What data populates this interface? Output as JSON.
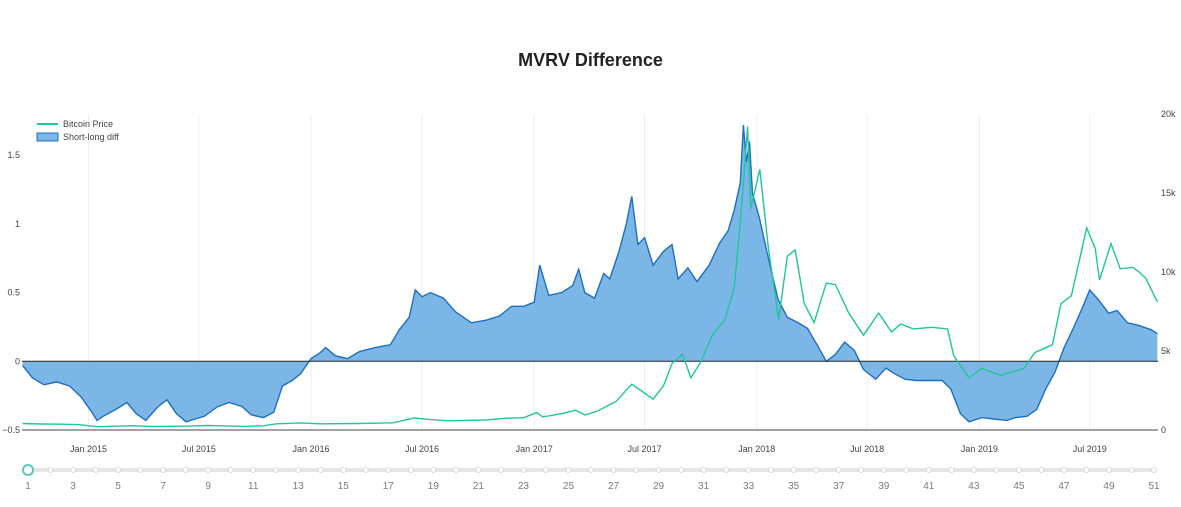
{
  "chart_data": {
    "type": "area",
    "title": "MVRV Difference",
    "grid": true,
    "legend_placement": "top-left",
    "x_ticks": [
      "Jan 2015",
      "Jul 2015",
      "Jan 2016",
      "Jul 2016",
      "Jan 2017",
      "Jul 2017",
      "Jan 2018",
      "Jul 2018",
      "Jan 2019",
      "Jul 2019"
    ],
    "y_left": {
      "range": [
        -0.5,
        1.8
      ],
      "ticks": [
        "1.5",
        "1",
        "0.5",
        "0",
        "−0.5"
      ],
      "tick_values": [
        1.5,
        1,
        0.5,
        0,
        -0.5
      ]
    },
    "y_right": {
      "range": [
        0,
        20000
      ],
      "ticks": [
        "20k",
        "15k",
        "10k",
        "5k",
        "0"
      ],
      "tick_values": [
        20000,
        15000,
        10000,
        5000,
        0
      ]
    },
    "series": [
      {
        "name": "Short-long diff",
        "axis": "left",
        "color": "#1f6fc0",
        "fill": "#7bb6e6",
        "points": [
          [
            "2014-09-15",
            -0.03
          ],
          [
            "2014-10-01",
            -0.12
          ],
          [
            "2014-10-20",
            -0.17
          ],
          [
            "2014-11-10",
            -0.15
          ],
          [
            "2014-12-01",
            -0.18
          ],
          [
            "2014-12-20",
            -0.26
          ],
          [
            "2015-01-05",
            -0.36
          ],
          [
            "2015-01-15",
            -0.43
          ],
          [
            "2015-01-25",
            -0.4
          ],
          [
            "2015-02-15",
            -0.35
          ],
          [
            "2015-03-05",
            -0.3
          ],
          [
            "2015-03-20",
            -0.38
          ],
          [
            "2015-04-05",
            -0.43
          ],
          [
            "2015-04-25",
            -0.33
          ],
          [
            "2015-05-10",
            -0.28
          ],
          [
            "2015-05-25",
            -0.38
          ],
          [
            "2015-06-10",
            -0.44
          ],
          [
            "2015-06-25",
            -0.42
          ],
          [
            "2015-07-10",
            -0.4
          ],
          [
            "2015-08-01",
            -0.33
          ],
          [
            "2015-08-20",
            -0.3
          ],
          [
            "2015-09-10",
            -0.33
          ],
          [
            "2015-09-25",
            -0.39
          ],
          [
            "2015-10-15",
            -0.41
          ],
          [
            "2015-11-01",
            -0.37
          ],
          [
            "2015-11-15",
            -0.18
          ],
          [
            "2015-12-01",
            -0.14
          ],
          [
            "2015-12-15",
            -0.09
          ],
          [
            "2016-01-01",
            0.02
          ],
          [
            "2016-01-15",
            0.06
          ],
          [
            "2016-01-25",
            0.1
          ],
          [
            "2016-02-10",
            0.04
          ],
          [
            "2016-03-01",
            0.02
          ],
          [
            "2016-03-20",
            0.07
          ],
          [
            "2016-04-15",
            0.1
          ],
          [
            "2016-05-10",
            0.12
          ],
          [
            "2016-05-25",
            0.23
          ],
          [
            "2016-06-10",
            0.32
          ],
          [
            "2016-06-20",
            0.52
          ],
          [
            "2016-07-01",
            0.47
          ],
          [
            "2016-07-15",
            0.5
          ],
          [
            "2016-08-05",
            0.46
          ],
          [
            "2016-08-25",
            0.36
          ],
          [
            "2016-09-20",
            0.28
          ],
          [
            "2016-10-15",
            0.3
          ],
          [
            "2016-11-05",
            0.33
          ],
          [
            "2016-11-25",
            0.4
          ],
          [
            "2016-12-15",
            0.4
          ],
          [
            "2017-01-01",
            0.43
          ],
          [
            "2017-01-10",
            0.7
          ],
          [
            "2017-01-25",
            0.48
          ],
          [
            "2017-02-15",
            0.5
          ],
          [
            "2017-03-05",
            0.55
          ],
          [
            "2017-03-15",
            0.67
          ],
          [
            "2017-03-25",
            0.5
          ],
          [
            "2017-04-10",
            0.46
          ],
          [
            "2017-04-25",
            0.64
          ],
          [
            "2017-05-05",
            0.6
          ],
          [
            "2017-05-20",
            0.8
          ],
          [
            "2017-06-01",
            1.0
          ],
          [
            "2017-06-10",
            1.2
          ],
          [
            "2017-06-20",
            0.85
          ],
          [
            "2017-07-01",
            0.9
          ],
          [
            "2017-07-15",
            0.7
          ],
          [
            "2017-08-01",
            0.8
          ],
          [
            "2017-08-15",
            0.85
          ],
          [
            "2017-08-25",
            0.6
          ],
          [
            "2017-09-10",
            0.68
          ],
          [
            "2017-09-25",
            0.58
          ],
          [
            "2017-10-15",
            0.7
          ],
          [
            "2017-11-01",
            0.86
          ],
          [
            "2017-11-15",
            0.95
          ],
          [
            "2017-11-25",
            1.1
          ],
          [
            "2017-12-05",
            1.3
          ],
          [
            "2017-12-10",
            1.72
          ],
          [
            "2017-12-15",
            1.45
          ],
          [
            "2017-12-20",
            1.6
          ],
          [
            "2017-12-25",
            1.22
          ],
          [
            "2018-01-05",
            1.05
          ],
          [
            "2018-01-20",
            0.75
          ],
          [
            "2018-02-05",
            0.45
          ],
          [
            "2018-02-20",
            0.32
          ],
          [
            "2018-03-10",
            0.28
          ],
          [
            "2018-03-25",
            0.24
          ],
          [
            "2018-04-10",
            0.12
          ],
          [
            "2018-04-25",
            0.0
          ],
          [
            "2018-05-10",
            0.05
          ],
          [
            "2018-05-25",
            0.14
          ],
          [
            "2018-06-10",
            0.08
          ],
          [
            "2018-06-25",
            -0.06
          ],
          [
            "2018-07-15",
            -0.13
          ],
          [
            "2018-08-01",
            -0.05
          ],
          [
            "2018-08-15",
            -0.09
          ],
          [
            "2018-09-01",
            -0.13
          ],
          [
            "2018-09-20",
            -0.14
          ],
          [
            "2018-10-10",
            -0.14
          ],
          [
            "2018-11-01",
            -0.14
          ],
          [
            "2018-11-15",
            -0.2
          ],
          [
            "2018-12-01",
            -0.38
          ],
          [
            "2018-12-15",
            -0.44
          ],
          [
            "2019-01-05",
            -0.41
          ],
          [
            "2019-01-25",
            -0.42
          ],
          [
            "2019-02-15",
            -0.43
          ],
          [
            "2019-03-01",
            -0.41
          ],
          [
            "2019-03-20",
            -0.4
          ],
          [
            "2019-04-05",
            -0.35
          ],
          [
            "2019-04-20",
            -0.2
          ],
          [
            "2019-05-05",
            -0.08
          ],
          [
            "2019-05-20",
            0.1
          ],
          [
            "2019-06-05",
            0.25
          ],
          [
            "2019-06-20",
            0.4
          ],
          [
            "2019-07-01",
            0.52
          ],
          [
            "2019-07-15",
            0.45
          ],
          [
            "2019-08-01",
            0.35
          ],
          [
            "2019-08-15",
            0.37
          ],
          [
            "2019-09-01",
            0.28
          ],
          [
            "2019-09-20",
            0.26
          ],
          [
            "2019-10-10",
            0.23
          ],
          [
            "2019-10-20",
            0.2
          ]
        ]
      },
      {
        "name": "Bitcoin Price",
        "axis": "right",
        "color": "#1fc79a",
        "points": [
          [
            "2014-09-15",
            410
          ],
          [
            "2014-10-15",
            380
          ],
          [
            "2014-11-15",
            370
          ],
          [
            "2014-12-15",
            340
          ],
          [
            "2015-01-15",
            210
          ],
          [
            "2015-02-15",
            240
          ],
          [
            "2015-03-15",
            270
          ],
          [
            "2015-04-15",
            225
          ],
          [
            "2015-05-15",
            235
          ],
          [
            "2015-06-15",
            245
          ],
          [
            "2015-07-15",
            285
          ],
          [
            "2015-08-15",
            260
          ],
          [
            "2015-09-15",
            230
          ],
          [
            "2015-10-15",
            265
          ],
          [
            "2015-11-05",
            390
          ],
          [
            "2015-12-15",
            450
          ],
          [
            "2016-01-15",
            390
          ],
          [
            "2016-03-15",
            410
          ],
          [
            "2016-05-15",
            455
          ],
          [
            "2016-06-18",
            760
          ],
          [
            "2016-07-15",
            660
          ],
          [
            "2016-08-15",
            580
          ],
          [
            "2016-10-15",
            640
          ],
          [
            "2016-11-15",
            740
          ],
          [
            "2016-12-15",
            780
          ],
          [
            "2017-01-05",
            1100
          ],
          [
            "2017-01-15",
            830
          ],
          [
            "2017-02-15",
            1030
          ],
          [
            "2017-03-10",
            1250
          ],
          [
            "2017-03-25",
            950
          ],
          [
            "2017-04-15",
            1200
          ],
          [
            "2017-05-15",
            1800
          ],
          [
            "2017-06-10",
            2900
          ],
          [
            "2017-06-25",
            2500
          ],
          [
            "2017-07-15",
            1950
          ],
          [
            "2017-08-01",
            2800
          ],
          [
            "2017-08-15",
            4200
          ],
          [
            "2017-09-01",
            4800
          ],
          [
            "2017-09-15",
            3300
          ],
          [
            "2017-10-01",
            4300
          ],
          [
            "2017-10-20",
            6000
          ],
          [
            "2017-11-10",
            7000
          ],
          [
            "2017-11-25",
            9000
          ],
          [
            "2017-12-07",
            14000
          ],
          [
            "2017-12-17",
            19200
          ],
          [
            "2017-12-22",
            14000
          ],
          [
            "2018-01-06",
            16500
          ],
          [
            "2018-01-20",
            11500
          ],
          [
            "2018-02-06",
            7000
          ],
          [
            "2018-02-20",
            11000
          ],
          [
            "2018-03-05",
            11400
          ],
          [
            "2018-03-20",
            8000
          ],
          [
            "2018-04-05",
            6800
          ],
          [
            "2018-04-25",
            9300
          ],
          [
            "2018-05-10",
            9200
          ],
          [
            "2018-06-01",
            7400
          ],
          [
            "2018-06-25",
            6000
          ],
          [
            "2018-07-20",
            7400
          ],
          [
            "2018-08-10",
            6200
          ],
          [
            "2018-08-25",
            6700
          ],
          [
            "2018-09-15",
            6400
          ],
          [
            "2018-10-15",
            6500
          ],
          [
            "2018-11-10",
            6400
          ],
          [
            "2018-11-20",
            4700
          ],
          [
            "2018-12-15",
            3300
          ],
          [
            "2019-01-05",
            3900
          ],
          [
            "2019-02-05",
            3450
          ],
          [
            "2019-03-15",
            3900
          ],
          [
            "2019-04-02",
            4900
          ],
          [
            "2019-05-01",
            5400
          ],
          [
            "2019-05-15",
            8000
          ],
          [
            "2019-06-01",
            8500
          ],
          [
            "2019-06-26",
            12800
          ],
          [
            "2019-07-10",
            11500
          ],
          [
            "2019-07-17",
            9500
          ],
          [
            "2019-08-05",
            11800
          ],
          [
            "2019-08-20",
            10200
          ],
          [
            "2019-09-10",
            10300
          ],
          [
            "2019-09-20",
            10000
          ],
          [
            "2019-10-01",
            9600
          ],
          [
            "2019-10-20",
            8100
          ]
        ]
      }
    ]
  },
  "slider": {
    "min_label": "1",
    "max_label": "51",
    "labels": [
      "1",
      "3",
      "5",
      "7",
      "9",
      "11",
      "13",
      "15",
      "17",
      "19",
      "21",
      "23",
      "25",
      "27",
      "29",
      "31",
      "33",
      "35",
      "37",
      "39",
      "41",
      "43",
      "45",
      "47",
      "49",
      "51"
    ],
    "steps": 51,
    "current": "1",
    "accent": "#5fc4c4"
  }
}
